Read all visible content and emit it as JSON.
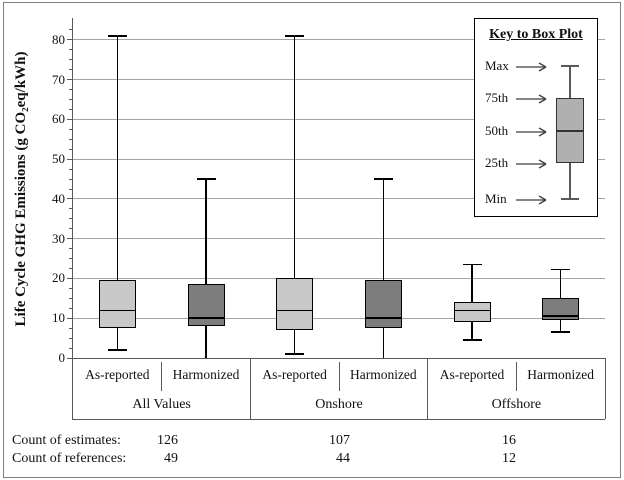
{
  "chart_data": {
    "type": "boxplot",
    "title": "",
    "ylabel": "Life Cycle GHG Emissions (g CO₂eq/kWh)",
    "ylim": [
      0,
      85
    ],
    "yticks": [
      0,
      10,
      20,
      30,
      40,
      50,
      60,
      70,
      80
    ],
    "ytick_minor_step": 2.5,
    "grid": true,
    "legend_position": "top-right",
    "legend": {
      "title": "Key to Box Plot",
      "entries": [
        "Max",
        "75th",
        "50th",
        "25th",
        "Min"
      ]
    },
    "groups": [
      {
        "label": "All Values",
        "boxes": [
          {
            "label": "As-reported",
            "shade": "light",
            "min": 2,
            "q1": 7.5,
            "median": 12,
            "q3": 19.5,
            "max": 81,
            "min_cap": true
          },
          {
            "label": "Harmonized",
            "shade": "dark",
            "min": 0,
            "q1": 8,
            "median": 10,
            "q3": 18.5,
            "max": 45,
            "min_cap": false
          }
        ]
      },
      {
        "label": "Onshore",
        "boxes": [
          {
            "label": "As-reported",
            "shade": "light",
            "min": 1,
            "q1": 7,
            "median": 12,
            "q3": 20,
            "max": 81,
            "min_cap": true
          },
          {
            "label": "Harmonized",
            "shade": "dark",
            "min": 0,
            "q1": 7.5,
            "median": 10,
            "q3": 19.5,
            "max": 45,
            "min_cap": false
          }
        ]
      },
      {
        "label": "Offshore",
        "boxes": [
          {
            "label": "As-reported",
            "shade": "light",
            "min": 4.5,
            "q1": 9,
            "median": 12,
            "q3": 14,
            "max": 23.5,
            "min_cap": true
          },
          {
            "label": "Harmonized",
            "shade": "dark",
            "min": 6.5,
            "q1": 9.5,
            "median": 10.5,
            "q3": 15,
            "max": 22.3,
            "min_cap": true
          }
        ]
      }
    ],
    "footer_rows": [
      {
        "label": "Count of estimates:",
        "values": [
          "126",
          "107",
          "16"
        ]
      },
      {
        "label": "Count of references:",
        "values": [
          "49",
          "44",
          "12"
        ]
      }
    ],
    "colors": {
      "box_light": "#c8c8c8",
      "box_dark": "#7d7d7d",
      "key_sample": "#b0b0b0",
      "gridline": "#a3a3a3",
      "axis": "#595959",
      "box_border": "#000000"
    }
  }
}
